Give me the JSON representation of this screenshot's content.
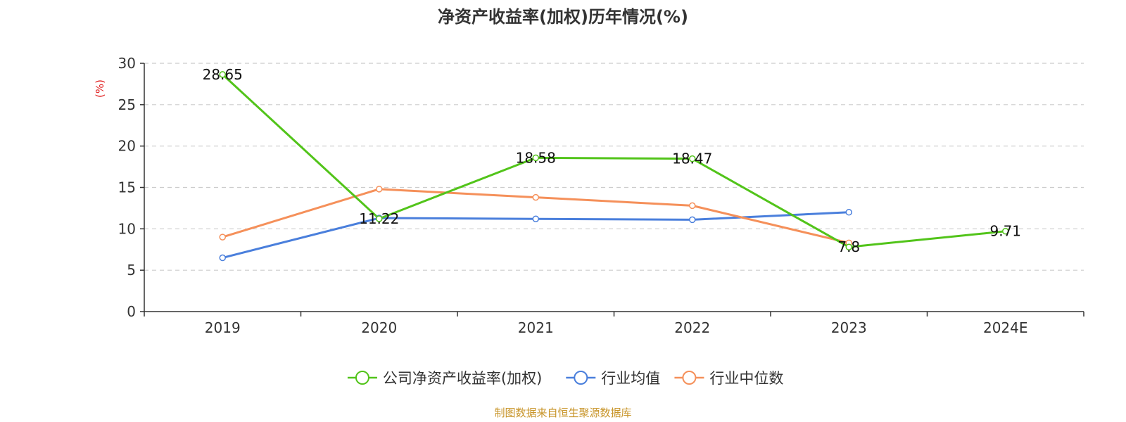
{
  "chart_data": {
    "type": "line",
    "title": "净资产收益率(加权)历年情况(%)",
    "ylabel": "(%)",
    "ylim": [
      0,
      30
    ],
    "yticks": [
      0,
      5,
      10,
      15,
      20,
      25,
      30
    ],
    "grid": "horizontal-dashed",
    "legend_position": "bottom",
    "categories": [
      "2019",
      "2020",
      "2021",
      "2022",
      "2023",
      "2024E"
    ],
    "series": [
      {
        "name": "公司净资产收益率(加权)",
        "color": "#52c41a",
        "values": [
          28.65,
          11.22,
          18.58,
          18.47,
          7.8,
          9.71
        ],
        "labels": [
          "28.65",
          "11.22",
          "18.58",
          "18.47",
          "7.8",
          "9.71"
        ]
      },
      {
        "name": "行业均值",
        "color": "#4a7fdc",
        "values": [
          6.5,
          11.3,
          11.2,
          11.1,
          12.0,
          null
        ]
      },
      {
        "name": "行业中位数",
        "color": "#f5905a",
        "values": [
          9.0,
          14.8,
          13.8,
          12.8,
          8.3,
          null
        ]
      }
    ],
    "ylabel_color": "#e02020",
    "source": "制图数据来自恒生聚源数据库",
    "source_color": "#c8952a"
  }
}
